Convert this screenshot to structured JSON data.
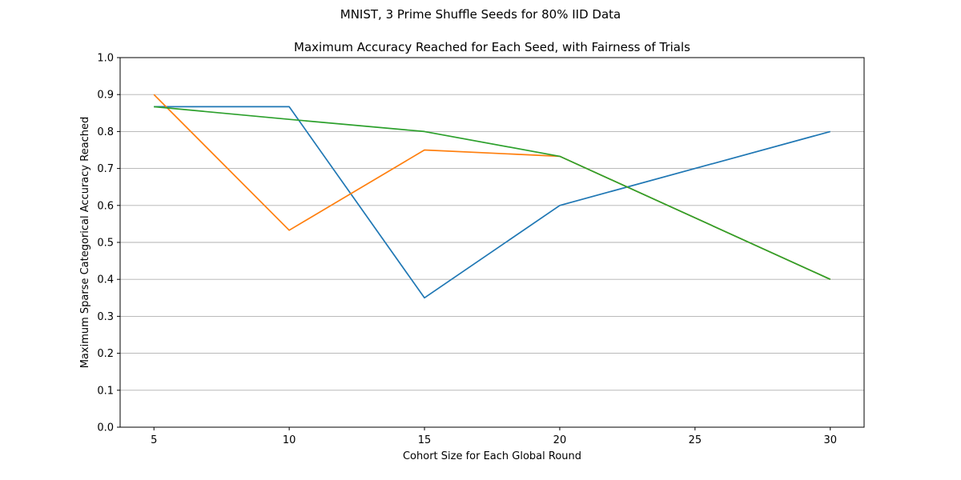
{
  "chart_data": {
    "type": "line",
    "suptitle": "MNIST, 3 Prime Shuffle Seeds for 80% IID Data",
    "title": "Maximum Accuracy Reached for Each Seed, with Fairness of Trials",
    "xlabel": "Cohort Size for Each Global Round",
    "ylabel": "Maximum Sparse Categorical Accuracy Reached",
    "xlim": [
      3.75,
      31.25
    ],
    "ylim": [
      0.0,
      1.0
    ],
    "xticks": [
      5,
      10,
      15,
      20,
      25,
      30
    ],
    "yticks": [
      0.0,
      0.1,
      0.2,
      0.3,
      0.4,
      0.5,
      0.6,
      0.7,
      0.8,
      0.9,
      1.0
    ],
    "ytick_labels": [
      "0.0",
      "0.1",
      "0.2",
      "0.3",
      "0.4",
      "0.5",
      "0.6",
      "0.7",
      "0.8",
      "0.9",
      "1.0"
    ],
    "xtick_labels": [
      "5",
      "10",
      "15",
      "20",
      "25",
      "30"
    ],
    "grid": "y",
    "series": [
      {
        "color": "#1f77b4",
        "x": [
          5,
          10,
          15,
          20,
          30
        ],
        "y": [
          0.867,
          0.867,
          0.35,
          0.6,
          0.8
        ]
      },
      {
        "color": "#ff7f0e",
        "x": [
          5,
          10,
          15,
          20,
          30
        ],
        "y": [
          0.9,
          0.533,
          0.75,
          0.733,
          0.4
        ]
      },
      {
        "color": "#2ca02c",
        "x": [
          5,
          10,
          15,
          20,
          30
        ],
        "y": [
          0.867,
          0.833,
          0.8,
          0.733,
          0.4
        ]
      }
    ]
  }
}
